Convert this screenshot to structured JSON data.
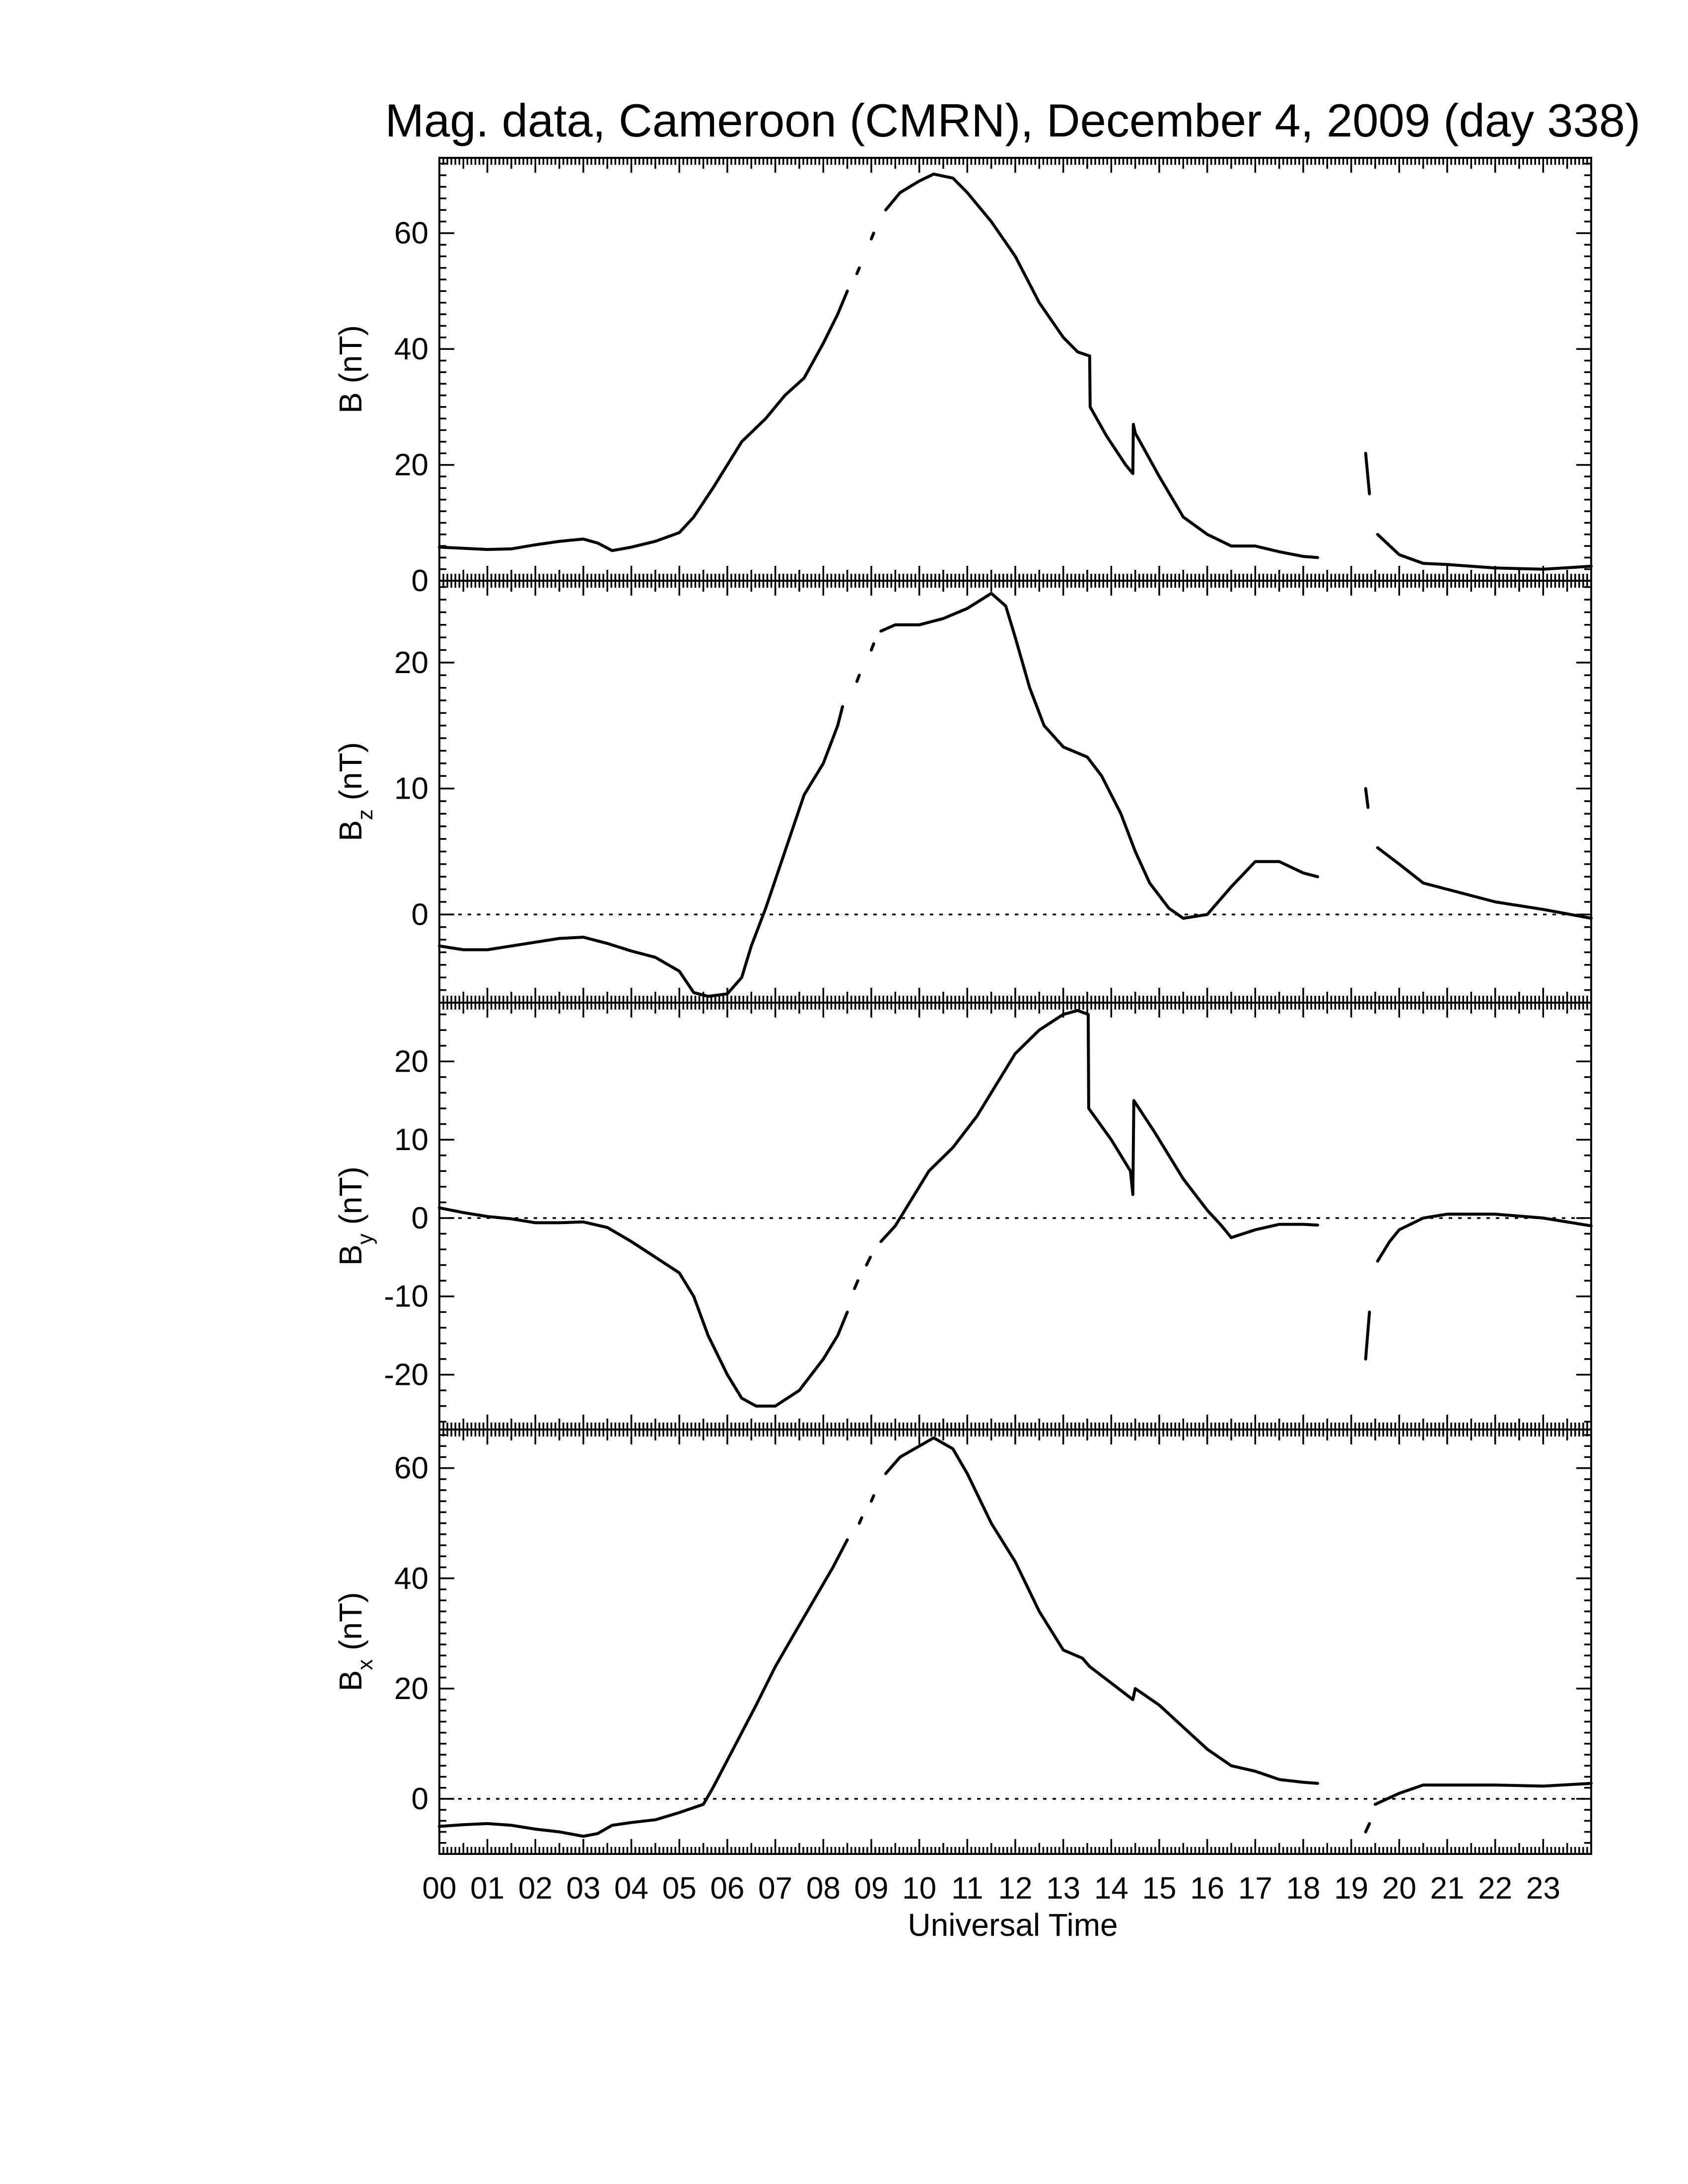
{
  "chart_data": {
    "type": "line",
    "title": "Mag. data, Cameroon (CMRN), December 4, 2009 (day 338)",
    "xlabel": "Universal Time",
    "x_ticks": [
      "00",
      "01",
      "02",
      "03",
      "04",
      "05",
      "06",
      "07",
      "08",
      "09",
      "10",
      "11",
      "12",
      "13",
      "14",
      "15",
      "16",
      "17",
      "18",
      "19",
      "20",
      "21",
      "22",
      "23"
    ],
    "xlim": [
      0,
      24
    ],
    "panels": [
      {
        "name": "B",
        "ylabel": "B (nT)",
        "ylabel_main": "B",
        "ylabel_sub": "",
        "ylabel_unit": " (nT)",
        "ylim": [
          0,
          73
        ],
        "yticks": [
          0,
          20,
          40,
          60
        ],
        "zero_line": false,
        "segments": [
          [
            [
              0,
              5.8
            ],
            [
              0.5,
              5.6
            ],
            [
              1,
              5.4
            ],
            [
              1.5,
              5.5
            ],
            [
              2,
              6.2
            ],
            [
              2.5,
              6.8
            ],
            [
              3,
              7.2
            ],
            [
              3.3,
              6.5
            ],
            [
              3.6,
              5.2
            ],
            [
              4,
              5.8
            ],
            [
              4.5,
              6.8
            ],
            [
              5,
              8.3
            ],
            [
              5.3,
              11
            ],
            [
              5.7,
              16
            ],
            [
              6,
              20
            ],
            [
              6.3,
              24
            ],
            [
              6.8,
              28
            ],
            [
              7.2,
              32
            ],
            [
              7.6,
              35
            ],
            [
              8,
              41
            ],
            [
              8.3,
              46
            ],
            [
              8.5,
              50
            ]
          ],
          [
            [
              8.7,
              53
            ],
            [
              8.75,
              54
            ]
          ],
          [
            [
              9.0,
              59
            ],
            [
              9.05,
              60
            ]
          ],
          [
            [
              9.3,
              64
            ],
            [
              9.6,
              67
            ],
            [
              10,
              69
            ],
            [
              10.3,
              70.2
            ],
            [
              10.7,
              69.5
            ],
            [
              11,
              67
            ],
            [
              11.5,
              62
            ],
            [
              12,
              56
            ],
            [
              12.5,
              48
            ],
            [
              13,
              42
            ],
            [
              13.3,
              39.5
            ],
            [
              13.55,
              38.8
            ],
            [
              13.56,
              30
            ],
            [
              13.9,
              25
            ],
            [
              14.3,
              20
            ],
            [
              14.45,
              18.5
            ],
            [
              14.46,
              27
            ],
            [
              14.5,
              25.5
            ],
            [
              15,
              18
            ],
            [
              15.5,
              11
            ],
            [
              16,
              8
            ],
            [
              16.5,
              6
            ],
            [
              17,
              6
            ],
            [
              17.5,
              5
            ],
            [
              18,
              4.2
            ],
            [
              18.3,
              4
            ]
          ],
          [
            [
              19.3,
              22
            ],
            [
              19.38,
              15
            ]
          ],
          [
            [
              19.55,
              8
            ],
            [
              20,
              4.5
            ],
            [
              20.5,
              3
            ],
            [
              21,
              2.8
            ],
            [
              22,
              2.2
            ],
            [
              23,
              2
            ],
            [
              24,
              2.5
            ]
          ]
        ]
      },
      {
        "name": "Bz",
        "ylabel": "Bz (nT)",
        "ylabel_main": "B",
        "ylabel_sub": "z",
        "ylabel_unit": " (nT)",
        "ylim": [
          -7,
          26.5
        ],
        "yticks": [
          0,
          10,
          20
        ],
        "zero_line": true,
        "segments": [
          [
            [
              0,
              -2.5
            ],
            [
              0.5,
              -2.8
            ],
            [
              1,
              -2.8
            ],
            [
              1.5,
              -2.5
            ],
            [
              2,
              -2.2
            ],
            [
              2.5,
              -1.9
            ],
            [
              3,
              -1.8
            ],
            [
              3.5,
              -2.3
            ],
            [
              4,
              -2.9
            ],
            [
              4.5,
              -3.4
            ],
            [
              5,
              -4.5
            ],
            [
              5.3,
              -6.2
            ],
            [
              5.6,
              -6.5
            ],
            [
              6,
              -6.3
            ],
            [
              6.3,
              -5
            ],
            [
              6.5,
              -2.5
            ],
            [
              6.8,
              0.5
            ],
            [
              7.2,
              5
            ],
            [
              7.6,
              9.5
            ],
            [
              8,
              12
            ],
            [
              8.3,
              15
            ],
            [
              8.4,
              16.5
            ]
          ],
          [
            [
              8.7,
              18.5
            ],
            [
              8.75,
              19
            ]
          ],
          [
            [
              9.0,
              21
            ],
            [
              9.05,
              21.5
            ]
          ],
          [
            [
              9.2,
              22.5
            ],
            [
              9.5,
              23
            ],
            [
              10,
              23
            ],
            [
              10.5,
              23.5
            ],
            [
              11,
              24.3
            ],
            [
              11.5,
              25.5
            ],
            [
              11.8,
              24.5
            ],
            [
              12,
              22
            ],
            [
              12.3,
              18
            ],
            [
              12.6,
              15
            ],
            [
              13,
              13.3
            ],
            [
              13.5,
              12.5
            ],
            [
              13.8,
              11
            ],
            [
              14.2,
              8
            ],
            [
              14.5,
              5
            ],
            [
              14.8,
              2.5
            ],
            [
              15.2,
              0.5
            ],
            [
              15.5,
              -0.3
            ],
            [
              16,
              0
            ],
            [
              16.5,
              2.2
            ],
            [
              17,
              4.2
            ],
            [
              17.5,
              4.2
            ],
            [
              18,
              3.3
            ],
            [
              18.3,
              3
            ]
          ],
          [
            [
              19.3,
              10
            ],
            [
              19.35,
              8.5
            ]
          ],
          [
            [
              19.55,
              5.3
            ],
            [
              20,
              4
            ],
            [
              20.5,
              2.5
            ],
            [
              21,
              2
            ],
            [
              22,
              1
            ],
            [
              23,
              0.4
            ],
            [
              24,
              -0.3
            ]
          ]
        ]
      },
      {
        "name": "By",
        "ylabel": "By (nT)",
        "ylabel_main": "B",
        "ylabel_sub": "y",
        "ylabel_unit": " (nT)",
        "ylim": [
          -27,
          27.5
        ],
        "yticks": [
          -20,
          -10,
          0,
          10,
          20
        ],
        "zero_line": true,
        "segments": [
          [
            [
              0,
              1.3
            ],
            [
              0.5,
              0.7
            ],
            [
              1,
              0.2
            ],
            [
              1.5,
              -0.1
            ],
            [
              2,
              -0.6
            ],
            [
              2.5,
              -0.6
            ],
            [
              3,
              -0.5
            ],
            [
              3.5,
              -1.2
            ],
            [
              4,
              -3
            ],
            [
              4.5,
              -5
            ],
            [
              5,
              -7
            ],
            [
              5.3,
              -10
            ],
            [
              5.6,
              -15
            ],
            [
              6,
              -20
            ],
            [
              6.3,
              -23
            ],
            [
              6.6,
              -24
            ],
            [
              7,
              -24
            ],
            [
              7.5,
              -22
            ],
            [
              8,
              -18
            ],
            [
              8.3,
              -15
            ],
            [
              8.5,
              -12
            ]
          ],
          [
            [
              8.65,
              -9
            ],
            [
              8.72,
              -8
            ]
          ],
          [
            [
              8.9,
              -6
            ],
            [
              8.98,
              -5
            ]
          ],
          [
            [
              9.2,
              -3
            ],
            [
              9.5,
              -1
            ],
            [
              9.8,
              2
            ],
            [
              10.2,
              6
            ],
            [
              10.7,
              9
            ],
            [
              11.2,
              13
            ],
            [
              11.6,
              17
            ],
            [
              12,
              21
            ],
            [
              12.5,
              24
            ],
            [
              13,
              26
            ],
            [
              13.3,
              26.5
            ],
            [
              13.52,
              26
            ],
            [
              13.53,
              14
            ],
            [
              14,
              10
            ],
            [
              14.4,
              6
            ],
            [
              14.45,
              3
            ],
            [
              14.47,
              15
            ],
            [
              14.9,
              11
            ],
            [
              15.5,
              5
            ],
            [
              16,
              1
            ],
            [
              16.3,
              -1
            ],
            [
              16.5,
              -2.5
            ],
            [
              17,
              -1.5
            ],
            [
              17.5,
              -0.8
            ],
            [
              18,
              -0.8
            ],
            [
              18.3,
              -0.9
            ]
          ],
          [
            [
              19.3,
              -18
            ],
            [
              19.38,
              -12
            ]
          ],
          [
            [
              19.55,
              -5.5
            ],
            [
              19.8,
              -3
            ],
            [
              20,
              -1.5
            ],
            [
              20.5,
              0
            ],
            [
              21,
              0.5
            ],
            [
              22,
              0.5
            ],
            [
              23,
              0
            ],
            [
              24,
              -1
            ]
          ]
        ]
      },
      {
        "name": "Bx",
        "ylabel": "Bx (nT)",
        "ylabel_main": "B",
        "ylabel_sub": "x",
        "ylabel_unit": " (nT)",
        "ylim": [
          -10,
          67
        ],
        "yticks": [
          0,
          20,
          40,
          60
        ],
        "zero_line": true,
        "segments": [
          [
            [
              0,
              -5
            ],
            [
              0.5,
              -4.7
            ],
            [
              1,
              -4.5
            ],
            [
              1.5,
              -4.8
            ],
            [
              2,
              -5.5
            ],
            [
              2.5,
              -6
            ],
            [
              3,
              -6.8
            ],
            [
              3.3,
              -6.3
            ],
            [
              3.6,
              -4.8
            ],
            [
              4,
              -4.3
            ],
            [
              4.5,
              -3.8
            ],
            [
              5,
              -2.5
            ],
            [
              5.5,
              -1
            ],
            [
              5.7,
              2
            ],
            [
              6,
              7
            ],
            [
              6.3,
              12
            ],
            [
              6.6,
              17
            ],
            [
              7,
              24
            ],
            [
              7.4,
              30
            ],
            [
              7.8,
              36
            ],
            [
              8.2,
              42
            ],
            [
              8.5,
              47
            ]
          ],
          [
            [
              8.75,
              50
            ],
            [
              8.8,
              51
            ]
          ],
          [
            [
              9.0,
              54
            ],
            [
              9.05,
              55
            ]
          ],
          [
            [
              9.3,
              59
            ],
            [
              9.6,
              62
            ],
            [
              10,
              64
            ],
            [
              10.3,
              65.5
            ],
            [
              10.7,
              63.5
            ],
            [
              11,
              59
            ],
            [
              11.5,
              50
            ],
            [
              12,
              43
            ],
            [
              12.5,
              34
            ],
            [
              13,
              27
            ],
            [
              13.4,
              25.5
            ],
            [
              13.55,
              24
            ],
            [
              14,
              21
            ],
            [
              14.45,
              18
            ],
            [
              14.5,
              20
            ],
            [
              15,
              17
            ],
            [
              15.5,
              13
            ],
            [
              16,
              9
            ],
            [
              16.5,
              6
            ],
            [
              17,
              5
            ],
            [
              17.5,
              3.5
            ],
            [
              18,
              3
            ],
            [
              18.3,
              2.8
            ]
          ],
          [
            [
              19.3,
              -6
            ],
            [
              19.38,
              -4.5
            ]
          ],
          [
            [
              19.5,
              -1
            ],
            [
              20,
              1
            ],
            [
              20.5,
              2.5
            ],
            [
              21,
              2.5
            ],
            [
              22,
              2.5
            ],
            [
              23,
              2.3
            ],
            [
              24,
              2.8
            ]
          ]
        ]
      }
    ]
  }
}
